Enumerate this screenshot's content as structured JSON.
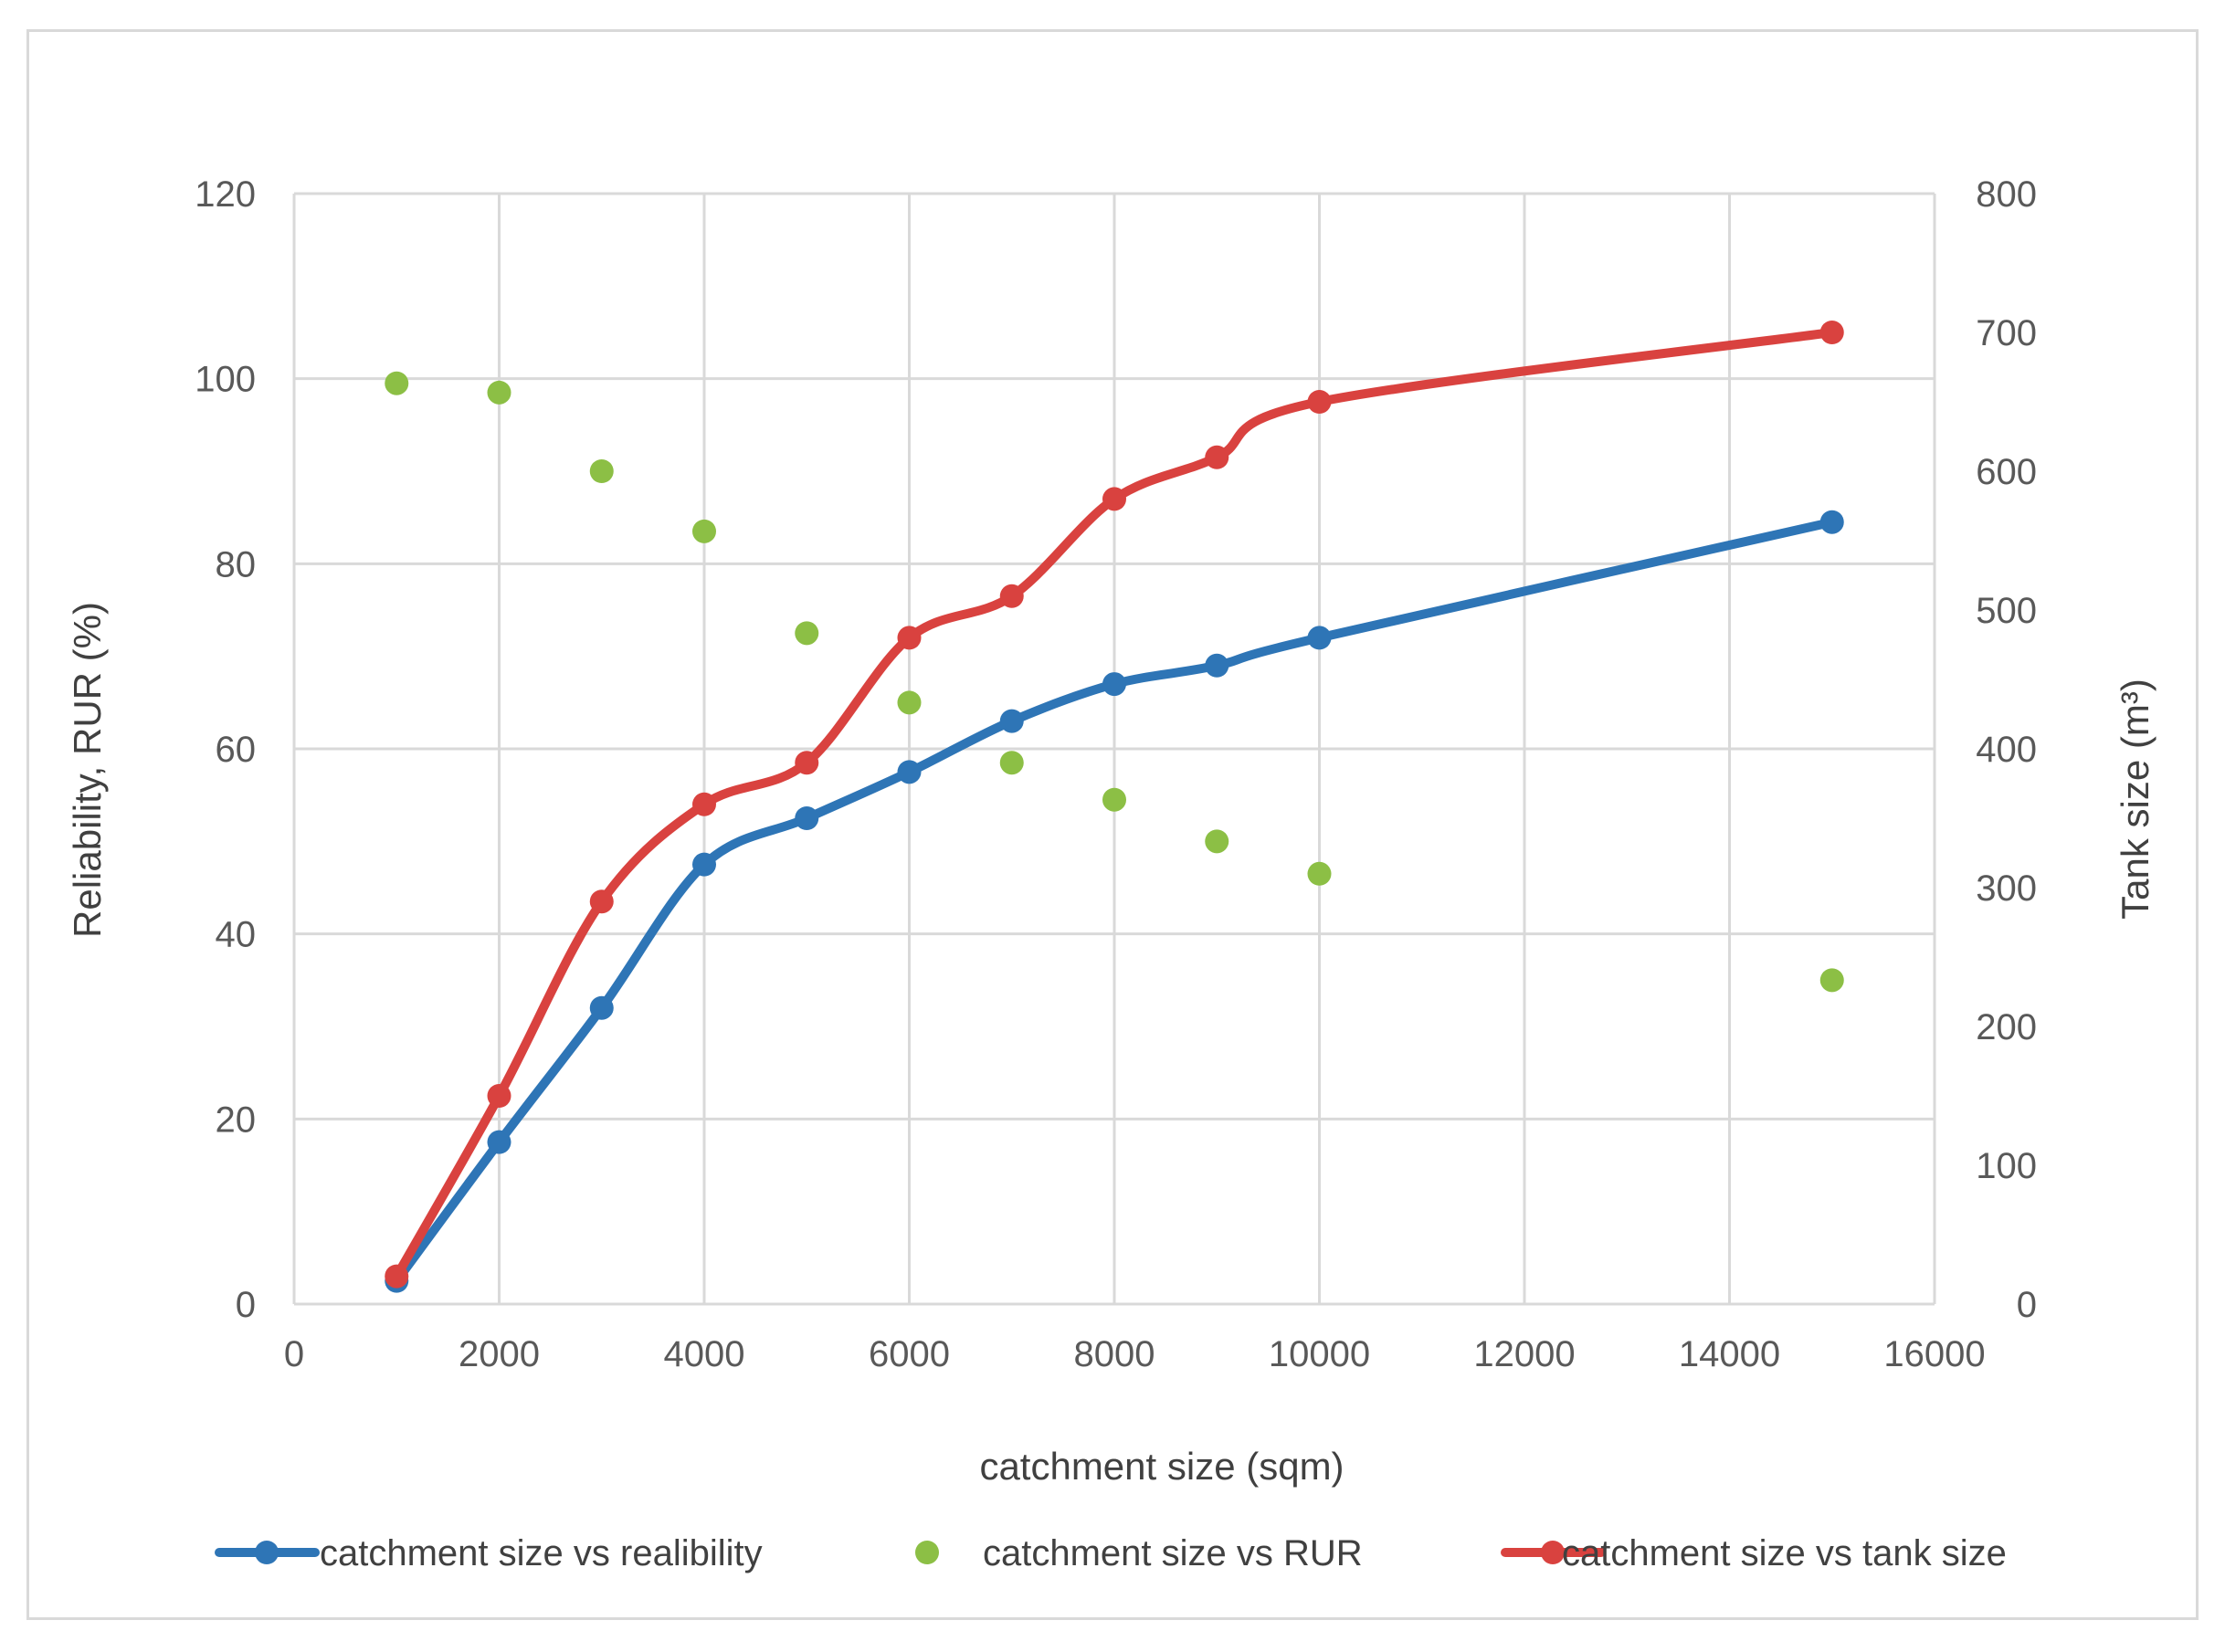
{
  "chart_data": {
    "type": "line",
    "title": "",
    "xlabel": "catchment size (sqm)",
    "ylabel": "Reliability, RUR (%)",
    "y2label": "Tank size (m³)",
    "xlim": [
      0,
      16000
    ],
    "xticks": [
      0,
      2000,
      4000,
      6000,
      8000,
      10000,
      12000,
      14000,
      16000
    ],
    "ylim": [
      0,
      120
    ],
    "yticks": [
      0,
      20,
      40,
      60,
      80,
      100,
      120
    ],
    "y2lim": [
      0,
      800
    ],
    "y2ticks": [
      0,
      100,
      200,
      300,
      400,
      500,
      600,
      700,
      800
    ],
    "grid": true,
    "legend_position": "bottom",
    "series": [
      {
        "name": "catchment size vs realibility",
        "type": "line-smooth",
        "axis": "left",
        "color": "#2e75b6",
        "x": [
          1000,
          2000,
          3000,
          4000,
          5000,
          6000,
          7000,
          8000,
          9000,
          10000,
          15000
        ],
        "y": [
          2.5,
          17.5,
          32,
          47.5,
          52.5,
          57.5,
          63,
          67,
          69,
          72,
          84.5
        ]
      },
      {
        "name": "catchment size vs RUR",
        "type": "scatter",
        "axis": "left",
        "color": "#8cbf45",
        "x": [
          1000,
          2000,
          3000,
          4000,
          5000,
          6000,
          7000,
          8000,
          9000,
          10000,
          15000
        ],
        "y": [
          99.5,
          98.5,
          90,
          83.5,
          72.5,
          65,
          58.5,
          54.5,
          50,
          46.5,
          35
        ]
      },
      {
        "name": "catchment size vs tank size",
        "type": "line-smooth",
        "axis": "right",
        "color": "#d9423f",
        "x": [
          1000,
          2000,
          3000,
          4000,
          5000,
          6000,
          7000,
          8000,
          9000,
          10000,
          15000
        ],
        "y": [
          20,
          150,
          290,
          360,
          390,
          480,
          510,
          580,
          610,
          650,
          700
        ]
      }
    ]
  }
}
